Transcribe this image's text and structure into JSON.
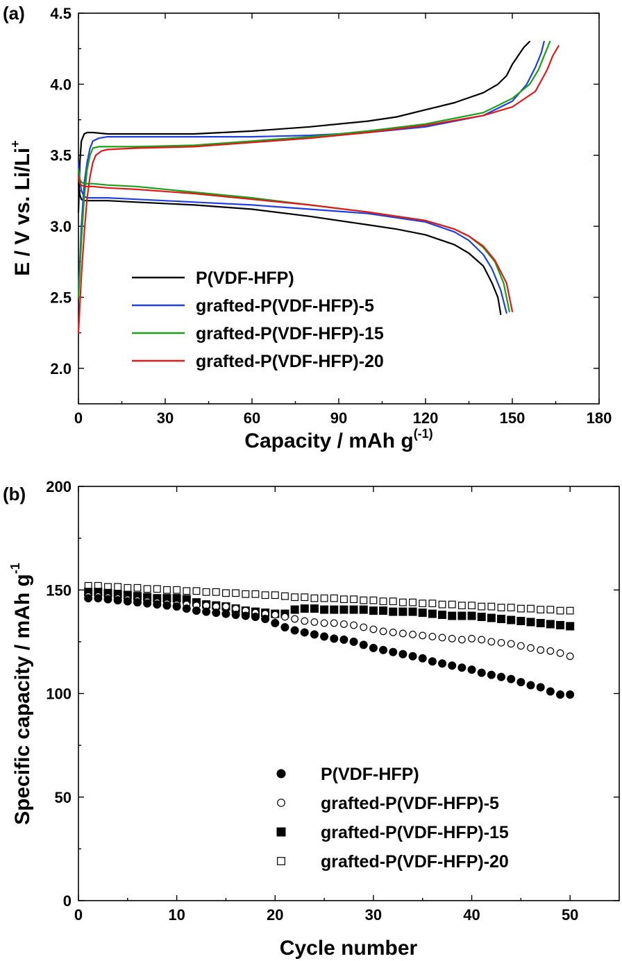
{
  "chart_data": [
    {
      "panel_label": "(a)",
      "type": "line",
      "xlabel_main": "Capacity / mAh g",
      "xlabel_sup": "(-1)",
      "ylabel_main": "E / V vs. Li/Li",
      "ylabel_sup": "+",
      "xlim": [
        0,
        180
      ],
      "ylim": [
        1.75,
        4.5
      ],
      "xticks": [
        "0",
        "30",
        "60",
        "90",
        "120",
        "150",
        "180"
      ],
      "yticks": [
        "2.0",
        "2.5",
        "3.0",
        "3.5",
        "4.0",
        "4.5"
      ],
      "legend_position": "lower-left",
      "series": [
        {
          "name": "P(VDF-HFP)",
          "color": "#000000",
          "charge": {
            "x": [
              0,
              0.5,
              1,
              2,
              3,
              5,
              10,
              20,
              40,
              60,
              80,
              100,
              110,
              120,
              130,
              140,
              145,
              148,
              150,
              152,
              154,
              156
            ],
            "y": [
              3.1,
              3.45,
              3.6,
              3.65,
              3.66,
              3.66,
              3.65,
              3.65,
              3.65,
              3.67,
              3.7,
              3.74,
              3.77,
              3.82,
              3.87,
              3.94,
              4.0,
              4.06,
              4.14,
              4.2,
              4.26,
              4.3
            ]
          },
          "discharge": {
            "x": [
              0,
              0.5,
              1,
              2,
              5,
              10,
              20,
              40,
              60,
              80,
              100,
              110,
              120,
              130,
              135,
              140,
              143,
              145,
              146
            ],
            "y": [
              3.3,
              3.22,
              3.19,
              3.18,
              3.18,
              3.18,
              3.17,
              3.15,
              3.12,
              3.07,
              3.01,
              2.98,
              2.94,
              2.87,
              2.81,
              2.72,
              2.6,
              2.5,
              2.38
            ]
          }
        },
        {
          "name": "grafted-P(VDF-HFP)-5",
          "color": "#1f3fe0",
          "charge": {
            "x": [
              0,
              0.5,
              1,
              2,
              3,
              4,
              5,
              7,
              10,
              20,
              40,
              60,
              80,
              100,
              120,
              140,
              150,
              155,
              158,
              160,
              161
            ],
            "y": [
              2.55,
              2.75,
              3.0,
              3.3,
              3.45,
              3.55,
              3.6,
              3.62,
              3.63,
              3.63,
              3.63,
              3.63,
              3.64,
              3.66,
              3.7,
              3.78,
              3.88,
              4.0,
              4.12,
              4.22,
              4.3
            ]
          },
          "discharge": {
            "x": [
              0,
              0.5,
              1,
              2,
              3,
              5,
              10,
              20,
              40,
              60,
              80,
              100,
              120,
              130,
              135,
              140,
              143,
              146,
              148
            ],
            "y": [
              3.45,
              3.32,
              3.25,
              3.21,
              3.2,
              3.2,
              3.2,
              3.19,
              3.17,
              3.15,
              3.12,
              3.09,
              3.03,
              2.96,
              2.9,
              2.8,
              2.7,
              2.55,
              2.39
            ]
          }
        },
        {
          "name": "grafted-P(VDF-HFP)-15",
          "color": "#18a018",
          "charge": {
            "x": [
              0,
              0.5,
              1,
              2,
              3,
              4,
              5,
              7,
              10,
              20,
              40,
              60,
              80,
              100,
              120,
              140,
              150,
              156,
              159,
              161,
              163
            ],
            "y": [
              2.5,
              2.7,
              2.9,
              3.2,
              3.4,
              3.5,
              3.55,
              3.56,
              3.56,
              3.56,
              3.57,
              3.6,
              3.63,
              3.67,
              3.72,
              3.8,
              3.9,
              4.0,
              4.1,
              4.2,
              4.3
            ]
          },
          "discharge": {
            "x": [
              0,
              0.5,
              1,
              2,
              5,
              10,
              20,
              40,
              60,
              80,
              100,
              120,
              130,
              135,
              140,
              144,
              147,
              149
            ],
            "y": [
              3.4,
              3.33,
              3.31,
              3.3,
              3.3,
              3.29,
              3.28,
              3.24,
              3.2,
              3.15,
              3.1,
              3.04,
              2.98,
              2.93,
              2.85,
              2.75,
              2.6,
              2.4
            ]
          }
        },
        {
          "name": "grafted-P(VDF-HFP)-20",
          "color": "#e01a1a",
          "charge": {
            "x": [
              0,
              0.5,
              1,
              2,
              3,
              4,
              5,
              6,
              8,
              10,
              20,
              40,
              60,
              80,
              100,
              120,
              140,
              150,
              158,
              162,
              164,
              166
            ],
            "y": [
              2.25,
              2.45,
              2.65,
              2.95,
              3.2,
              3.35,
              3.45,
              3.5,
              3.53,
              3.54,
              3.55,
              3.56,
              3.59,
              3.62,
              3.66,
              3.71,
              3.78,
              3.84,
              3.95,
              4.1,
              4.2,
              4.27
            ]
          },
          "discharge": {
            "x": [
              0,
              0.5,
              1,
              2,
              5,
              10,
              20,
              40,
              60,
              80,
              100,
              120,
              130,
              135,
              140,
              144,
              148,
              150
            ],
            "y": [
              3.35,
              3.3,
              3.29,
              3.28,
              3.28,
              3.27,
              3.26,
              3.23,
              3.19,
              3.15,
              3.1,
              3.04,
              2.98,
              2.93,
              2.86,
              2.76,
              2.6,
              2.4
            ]
          }
        }
      ]
    },
    {
      "panel_label": "(b)",
      "type": "scatter",
      "xlabel": "Cycle number",
      "ylabel_main": "Specific capacity / mAh g",
      "ylabel_sup": "-1",
      "xlim": [
        0,
        55
      ],
      "ylim": [
        0,
        200
      ],
      "xticks": [
        "0",
        "10",
        "20",
        "30",
        "40",
        "50"
      ],
      "yticks": [
        "0",
        "50",
        "100",
        "150",
        "200"
      ],
      "legend_position": "lower-right",
      "x": [
        1,
        2,
        3,
        4,
        5,
        6,
        7,
        8,
        9,
        10,
        11,
        12,
        13,
        14,
        15,
        16,
        17,
        18,
        19,
        20,
        21,
        22,
        23,
        24,
        25,
        26,
        27,
        28,
        29,
        30,
        31,
        32,
        33,
        34,
        35,
        36,
        37,
        38,
        39,
        40,
        41,
        42,
        43,
        44,
        45,
        46,
        47,
        48,
        49,
        50
      ],
      "series": [
        {
          "name": "P(VDF-HFP)",
          "marker": "filled-circle",
          "values": [
            146,
            146,
            145.5,
            145,
            144.5,
            144,
            143.5,
            143,
            142.5,
            142,
            141,
            140,
            139.5,
            139,
            138.5,
            138,
            137.5,
            137,
            136,
            134,
            132,
            130.5,
            129.5,
            128.5,
            127.5,
            126.5,
            126,
            125,
            123.5,
            122,
            121,
            120,
            119,
            118,
            117,
            115.5,
            114.5,
            113.5,
            112.5,
            111.5,
            110,
            109,
            108,
            107,
            105.5,
            104,
            103,
            101,
            99.5,
            99.5
          ]
        },
        {
          "name": "grafted-P(VDF-HFP)-5",
          "marker": "open-circle",
          "values": [
            147,
            147,
            146.5,
            146,
            145.5,
            145,
            144.5,
            144,
            143.5,
            143,
            143,
            142.5,
            142.5,
            142,
            142,
            141,
            140,
            139,
            138.5,
            138,
            137,
            136,
            135,
            134.5,
            134,
            134,
            133.5,
            133,
            132,
            131,
            130,
            129.5,
            129,
            128.5,
            128,
            127.5,
            127,
            126.5,
            126,
            126.5,
            126,
            125,
            124.5,
            124,
            123,
            122,
            121,
            120.5,
            119.5,
            118
          ]
        },
        {
          "name": "grafted-P(VDF-HFP)-15",
          "marker": "filled-square",
          "values": [
            149,
            149,
            148.5,
            148,
            147.5,
            147,
            146.5,
            146,
            146,
            146,
            145.5,
            144,
            143,
            142.5,
            142,
            141,
            140,
            139.5,
            139,
            138.5,
            138.5,
            140.5,
            141,
            141,
            140.5,
            140.5,
            140.5,
            140.5,
            140.5,
            140,
            140,
            139.5,
            139.5,
            139.5,
            139,
            138.5,
            138,
            137.5,
            137.5,
            137.5,
            137,
            136.5,
            136,
            135.5,
            135,
            134.5,
            134,
            133.5,
            133,
            132.5
          ]
        },
        {
          "name": "grafted-P(VDF-HFP)-20",
          "marker": "open-square",
          "values": [
            152,
            152,
            151.5,
            151.5,
            151,
            151,
            150.5,
            150.5,
            150,
            150,
            149.5,
            149.5,
            149,
            149,
            148.5,
            148.5,
            148,
            148,
            147.5,
            147.5,
            147,
            146.5,
            146.5,
            146,
            146,
            146,
            145.5,
            145.5,
            145,
            145,
            144.5,
            144.5,
            144,
            144,
            143.5,
            143.5,
            143,
            143,
            142.5,
            142.5,
            142,
            142,
            141.5,
            141.5,
            141,
            141,
            140.5,
            140.5,
            140,
            140
          ]
        }
      ]
    }
  ]
}
